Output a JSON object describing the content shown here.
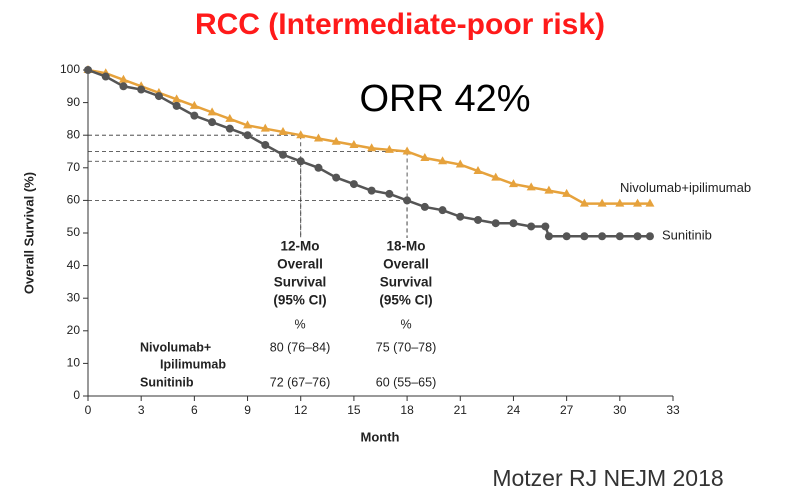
{
  "chart_data": {
    "type": "line",
    "title": "RCC (Intermediate-poor risk)",
    "annotation": "ORR 42%",
    "source": "Motzer RJ NEJM 2018",
    "x_label": "Month",
    "y_label": "Overall Survival (%)",
    "xlim": [
      0,
      33
    ],
    "ylim": [
      0,
      100
    ],
    "xticks": [
      0,
      3,
      6,
      9,
      12,
      15,
      18,
      21,
      24,
      27,
      30,
      33
    ],
    "yticks": [
      0,
      10,
      20,
      30,
      40,
      50,
      60,
      70,
      80,
      90,
      100
    ],
    "series": [
      {
        "name": "Nivolumab+ipilimumab",
        "color": "#e6a23c",
        "marker": "triangle",
        "x": [
          0,
          1,
          2,
          3,
          4,
          5,
          6,
          7,
          8,
          9,
          10,
          11,
          12,
          13,
          14,
          15,
          16,
          17,
          18,
          19,
          20,
          21,
          22,
          23,
          24,
          25,
          26,
          27,
          28,
          29,
          30,
          31,
          31.7
        ],
        "values": [
          100,
          99,
          97,
          95,
          93,
          91,
          89,
          87,
          85,
          83,
          82,
          81,
          80,
          79,
          78,
          77,
          76,
          75.5,
          75,
          73,
          72,
          71,
          69,
          67,
          65,
          64,
          63,
          62,
          59,
          59,
          59,
          59,
          59
        ]
      },
      {
        "name": "Sunitinib",
        "color": "#555555",
        "marker": "circle",
        "x": [
          0,
          1,
          2,
          3,
          4,
          5,
          6,
          7,
          8,
          9,
          10,
          11,
          12,
          13,
          14,
          15,
          16,
          17,
          18,
          19,
          20,
          21,
          22,
          23,
          24,
          25,
          25.8,
          26,
          27,
          28,
          29,
          30,
          31,
          31.7
        ],
        "values": [
          100,
          98,
          95,
          94,
          92,
          89,
          86,
          84,
          82,
          80,
          77,
          74,
          72,
          70,
          67,
          65,
          63,
          62,
          60,
          58,
          57,
          55,
          54,
          53,
          53,
          52,
          52,
          49,
          49,
          49,
          49,
          49,
          49,
          49
        ]
      }
    ],
    "reference_points": {
      "x": [
        12,
        12,
        18,
        18
      ],
      "y": [
        80,
        72,
        75,
        60
      ]
    },
    "table": {
      "columns": [
        {
          "header": [
            "12-Mo",
            "Overall",
            "Survival",
            "(95% CI)"
          ],
          "unit": "%"
        },
        {
          "header": [
            "18-Mo",
            "Overall",
            "Survival",
            "(95% CI)"
          ],
          "unit": "%"
        }
      ],
      "rows": [
        {
          "label": [
            "Nivolumab+",
            "Ipilimumab"
          ],
          "cells": [
            "80 (76–84)",
            "75 (70–78)"
          ]
        },
        {
          "label": [
            "Sunitinib"
          ],
          "cells": [
            "72 (67–76)",
            "60 (55–65)"
          ]
        }
      ]
    }
  }
}
